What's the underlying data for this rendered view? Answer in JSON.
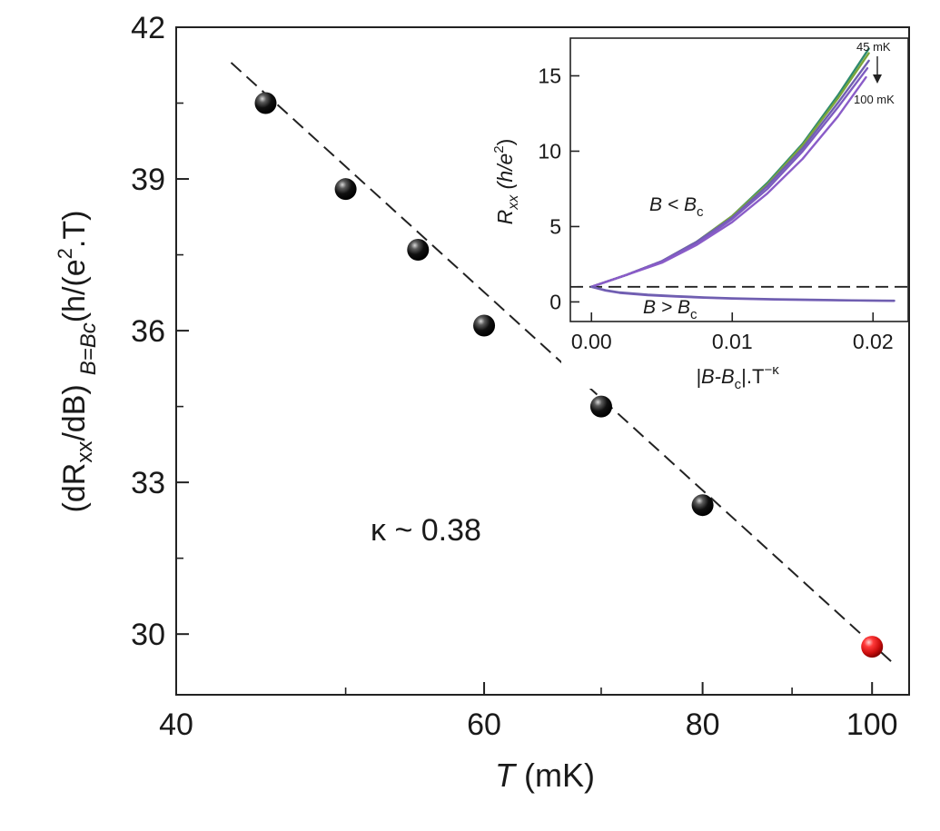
{
  "chart_data": [
    {
      "type": "scatter",
      "scale": "log-x",
      "xlabel_italic": "T",
      "xlabel_rest": " (mK)",
      "ylabel_base": "(dR",
      "ylabel_sub_xx": "xx",
      "ylabel_mid": "/dB)",
      "ylabel_sub_cond": "B=Bc",
      "ylabel_units": "(h/(e",
      "ylabel_sup": "2",
      "ylabel_end": ".T)",
      "xlim": [
        40,
        105
      ],
      "ylim": [
        28.8,
        42
      ],
      "xticks": [
        40,
        60,
        80,
        100
      ],
      "xminor": [
        50,
        70,
        90
      ],
      "yticks": [
        30,
        33,
        36,
        39,
        42
      ],
      "yminor": [
        31.5,
        34.5,
        37.5,
        40.5
      ],
      "points": [
        {
          "x": 45,
          "y": 40.5,
          "color": "#000000"
        },
        {
          "x": 50,
          "y": 38.8,
          "color": "#000000"
        },
        {
          "x": 55,
          "y": 37.6,
          "color": "#000000"
        },
        {
          "x": 60,
          "y": 36.1,
          "color": "#000000"
        },
        {
          "x": 70,
          "y": 34.5,
          "color": "#000000"
        },
        {
          "x": 80,
          "y": 32.55,
          "color": "#000000"
        },
        {
          "x": 100,
          "y": 29.75,
          "color": "#e02020"
        }
      ],
      "fit_line": {
        "x": [
          43,
          103
        ],
        "y": [
          41.3,
          29.4
        ],
        "style": "dashed"
      },
      "annotation": "κ ~ 0.38"
    },
    {
      "type": "line",
      "xlabel": "|B-B",
      "xlabel_sub": "c",
      "xlabel_mid": "|.T",
      "xlabel_sup": "−κ",
      "ylabel_base": "R",
      "ylabel_sub": "xx",
      "ylabel_units": " (h/e",
      "ylabel_sup": "2",
      "ylabel_close": ")",
      "xlim": [
        -0.0015,
        0.0225
      ],
      "ylim": [
        -1.3,
        17.5
      ],
      "xticks": [
        0.0,
        0.01,
        0.02
      ],
      "xtick_labels": [
        "0.00",
        "0.01",
        "0.02"
      ],
      "yticks": [
        0,
        5,
        10,
        15
      ],
      "reference_line": {
        "y": 1,
        "style": "dashed"
      },
      "label_below": "B < B",
      "label_below_sub": "c",
      "label_above": "B > B",
      "label_above_sub": "c",
      "temp_high_label": "45 mK",
      "temp_low_label": "100 mK",
      "series_below": [
        {
          "color": "#2e8a6e",
          "x": [
            0,
            0.0025,
            0.005,
            0.0075,
            0.01,
            0.0125,
            0.015,
            0.0175,
            0.0197
          ],
          "y": [
            1,
            1.8,
            2.7,
            4.0,
            5.7,
            7.9,
            10.5,
            13.7,
            16.8
          ]
        },
        {
          "color": "#7ba63a",
          "x": [
            0,
            0.0025,
            0.005,
            0.0075,
            0.01,
            0.0125,
            0.015,
            0.0175,
            0.0197
          ],
          "y": [
            1,
            1.8,
            2.7,
            4.0,
            5.7,
            7.8,
            10.4,
            13.5,
            16.5
          ]
        },
        {
          "color": "#6f5fb0",
          "x": [
            0,
            0.0025,
            0.005,
            0.0075,
            0.01,
            0.0125,
            0.015,
            0.0175,
            0.0197
          ],
          "y": [
            1,
            1.8,
            2.7,
            4.0,
            5.6,
            7.7,
            10.2,
            13.2,
            16.0
          ]
        },
        {
          "color": "#7d5cc0",
          "x": [
            0,
            0.0025,
            0.005,
            0.0075,
            0.01,
            0.0125,
            0.015,
            0.0175,
            0.0196
          ],
          "y": [
            1,
            1.8,
            2.7,
            3.9,
            5.5,
            7.5,
            10.0,
            12.9,
            15.5
          ]
        },
        {
          "color": "#8a5cc8",
          "x": [
            0,
            0.0025,
            0.005,
            0.0075,
            0.01,
            0.0125,
            0.015,
            0.0175,
            0.0195
          ],
          "y": [
            1,
            1.8,
            2.6,
            3.8,
            5.3,
            7.2,
            9.5,
            12.3,
            14.9
          ]
        }
      ],
      "series_above": [
        {
          "color": "#7d5cc0",
          "x": [
            0,
            0.001,
            0.002,
            0.004,
            0.006,
            0.008,
            0.01,
            0.013,
            0.016,
            0.019,
            0.0215
          ],
          "y": [
            1,
            0.75,
            0.6,
            0.45,
            0.35,
            0.28,
            0.22,
            0.16,
            0.12,
            0.09,
            0.07
          ]
        },
        {
          "color": "#6f5fb0",
          "x": [
            0,
            0.001,
            0.002,
            0.004,
            0.006,
            0.008,
            0.01,
            0.013,
            0.016,
            0.019,
            0.0215
          ],
          "y": [
            1,
            0.78,
            0.63,
            0.48,
            0.38,
            0.3,
            0.24,
            0.18,
            0.14,
            0.1,
            0.08
          ]
        }
      ]
    }
  ]
}
